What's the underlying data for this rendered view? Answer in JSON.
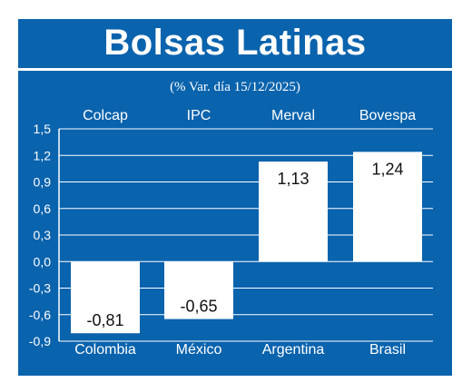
{
  "title": "Bolsas Latinas",
  "subtitle": "(% Var. día 15/12/2025)",
  "colors": {
    "background": "#0a63ad",
    "bar": "#ffffff",
    "text": "#ffffff",
    "value_text": "#111111"
  },
  "chart_data": {
    "type": "bar",
    "title": "Bolsas Latinas",
    "subtitle": "(% Var. día 15/12/2025)",
    "index_labels": [
      "Colcap",
      "IPC",
      "Merval",
      "Bovespa"
    ],
    "categories": [
      "Colombia",
      "México",
      "Argentina",
      "Brasil"
    ],
    "values": [
      -0.81,
      -0.65,
      1.13,
      1.24
    ],
    "value_labels": [
      "-0,81",
      "-0,65",
      "1,13",
      "1,24"
    ],
    "yticks": [
      "1,5",
      "1,2",
      "0,9",
      "0,6",
      "0,3",
      "0,0",
      "-0,3",
      "-0,6",
      "-0,9"
    ],
    "ytick_values": [
      1.5,
      1.2,
      0.9,
      0.6,
      0.3,
      0.0,
      -0.3,
      -0.6,
      -0.9
    ],
    "ylim": [
      -0.9,
      1.5
    ],
    "grid": true,
    "legend": "none"
  }
}
